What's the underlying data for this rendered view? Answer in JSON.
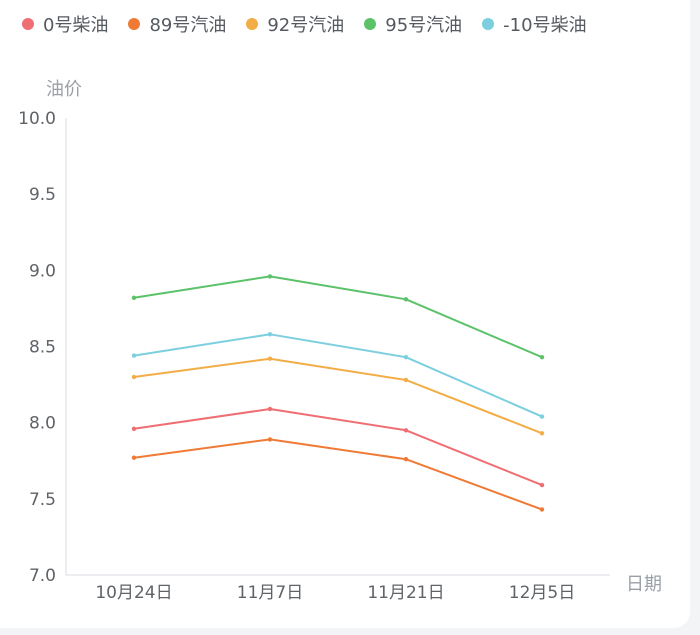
{
  "chart_data": {
    "type": "line",
    "title": "",
    "xlabel": "日期",
    "ylabel": "油价",
    "categories": [
      "10月24日",
      "11月7日",
      "11月21日",
      "12月5日"
    ],
    "y_ticks": [
      "7.0",
      "7.5",
      "8.0",
      "8.5",
      "9.0",
      "9.5",
      "10.0"
    ],
    "ylim": [
      7.0,
      10.0
    ],
    "grid": false,
    "legend_position": "top",
    "series": [
      {
        "name": "0号柴油",
        "color": "#ee6e73",
        "values": [
          7.96,
          8.09,
          7.95,
          7.59
        ]
      },
      {
        "name": "89号汽油",
        "color": "#ef7a35",
        "values": [
          7.77,
          7.89,
          7.76,
          7.43
        ]
      },
      {
        "name": "92号汽油",
        "color": "#f2ad47",
        "values": [
          8.3,
          8.42,
          8.28,
          7.93
        ]
      },
      {
        "name": "95号汽油",
        "color": "#5cc26a",
        "values": [
          8.82,
          8.96,
          8.81,
          8.43
        ]
      },
      {
        "name": "-10号柴油",
        "color": "#7ccfde",
        "values": [
          8.44,
          8.58,
          8.43,
          8.04
        ]
      }
    ]
  }
}
